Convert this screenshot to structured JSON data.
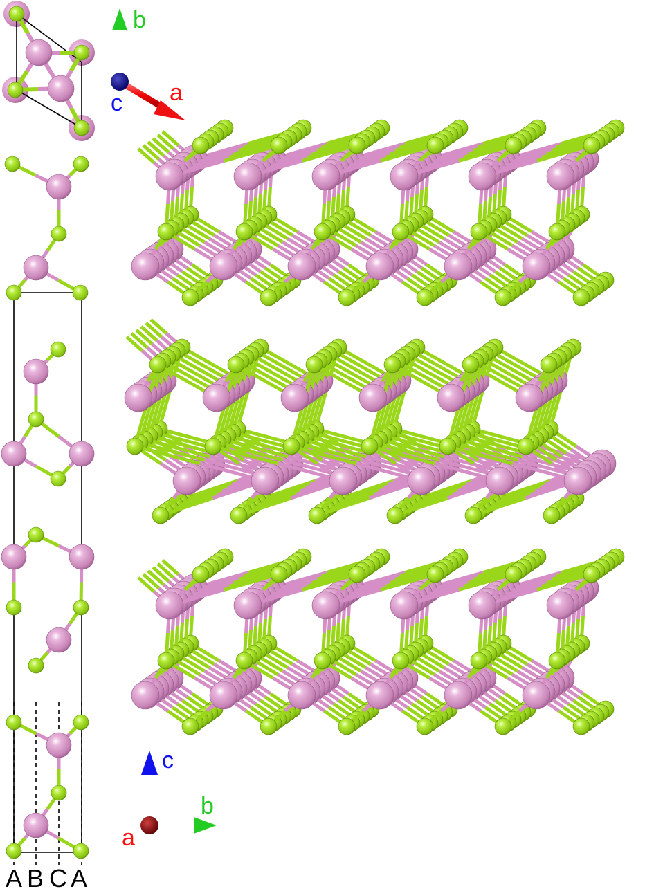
{
  "colors": {
    "pink_atom": "#d58fc6",
    "green_atom": "#9ad61a",
    "axis_a": "#ff1010",
    "axis_b": "#22cc22",
    "axis_c": "#1010ee",
    "origin_top": "#0a0a8a",
    "origin_bottom": "#8a0a0a"
  },
  "top_axes": {
    "a": "a",
    "b": "b",
    "c": "c"
  },
  "bottom_axes": {
    "a": "a",
    "b": "b",
    "c": "c"
  },
  "stacking": [
    "A",
    "B",
    "C",
    "A"
  ],
  "layers": {
    "count": 3,
    "units_per_row": 6
  }
}
